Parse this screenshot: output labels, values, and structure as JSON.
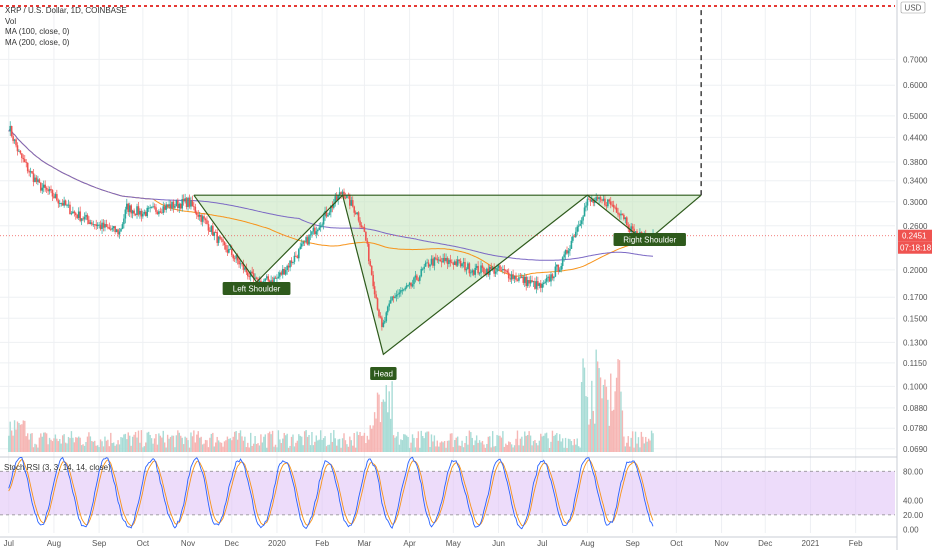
{
  "header": {
    "title": "XRP / U.S. Dollar, 1D, COINBASE",
    "indicators": [
      "Vol",
      "MA (100, close, 0)",
      "MA (200, close, 0)"
    ]
  },
  "currency_label": "USD",
  "current_price_label": "0.2451",
  "countdown_label": "07:18:18",
  "rsi_title": "Stoch RSI (3, 3, 14, 14, close)",
  "colors": {
    "up": "#26a69a",
    "down": "#ef5350",
    "ma100": "#f7931a",
    "ma200": "#7b68c4",
    "pattern_line": "#2e5a1c",
    "pattern_fill": "#c8e6c0",
    "label_bg": "#2e5a1c",
    "rsi_band": "#e1c4f7",
    "rsi_k": "#2962ff",
    "rsi_d": "#f7931a",
    "target_line": "#e53935"
  },
  "chart_data": {
    "type": "line",
    "title": "XRP / U.S. Dollar, 1D, COINBASE",
    "scale": "log",
    "ylim": [
      0.0665,
      0.95
    ],
    "y_ticks": [
      "0.7000",
      "0.6000",
      "0.5000",
      "0.4400",
      "0.3800",
      "0.3400",
      "0.3000",
      "0.2600",
      "0.2000",
      "0.1700",
      "0.1500",
      "0.1300",
      "0.1150",
      "0.1000",
      "0.0880",
      "0.0780",
      "0.0690"
    ],
    "x_ticks": [
      "Jul",
      "Aug",
      "Sep",
      "Oct",
      "Nov",
      "Dec",
      "2020",
      "Feb",
      "Mar",
      "Apr",
      "May",
      "Jun",
      "Jul",
      "Aug",
      "Sep",
      "Oct",
      "Nov",
      "Dec",
      "2021",
      "Feb"
    ],
    "x": [
      "2019-07-01",
      "2019-07-08",
      "2019-07-15",
      "2019-07-22",
      "2019-08-01",
      "2019-08-15",
      "2019-09-01",
      "2019-09-15",
      "2019-09-20",
      "2019-10-01",
      "2019-10-15",
      "2019-11-01",
      "2019-11-15",
      "2019-11-25",
      "2019-12-01",
      "2019-12-10",
      "2019-12-18",
      "2020-01-01",
      "2020-01-15",
      "2020-02-01",
      "2020-02-15",
      "2020-02-25",
      "2020-03-01",
      "2020-03-13",
      "2020-03-20",
      "2020-04-01",
      "2020-04-15",
      "2020-05-01",
      "2020-05-15",
      "2020-06-01",
      "2020-06-15",
      "2020-07-01",
      "2020-07-15",
      "2020-08-01",
      "2020-08-15",
      "2020-08-25",
      "2020-09-01",
      "2020-09-10",
      "2020-09-15"
    ],
    "series": [
      {
        "values": [
          0.47,
          0.4,
          0.36,
          0.33,
          0.31,
          0.28,
          0.26,
          0.25,
          0.29,
          0.28,
          0.29,
          0.3,
          0.26,
          0.23,
          0.22,
          0.2,
          0.185,
          0.19,
          0.22,
          0.27,
          0.32,
          0.28,
          0.25,
          0.14,
          0.17,
          0.18,
          0.21,
          0.21,
          0.2,
          0.2,
          0.19,
          0.18,
          0.21,
          0.3,
          0.3,
          0.28,
          0.25,
          0.24,
          0.245
        ]
      }
    ],
    "annotations": [
      "Left Shoulder",
      "Head",
      "Right Shoulder"
    ],
    "volume_ylim": [
      0,
      6
    ],
    "rsi": {
      "ylim": [
        -5,
        90
      ],
      "y_ticks": [
        "80.00",
        "40.00",
        "20.00",
        "0.00"
      ],
      "band": [
        20,
        80
      ]
    }
  }
}
